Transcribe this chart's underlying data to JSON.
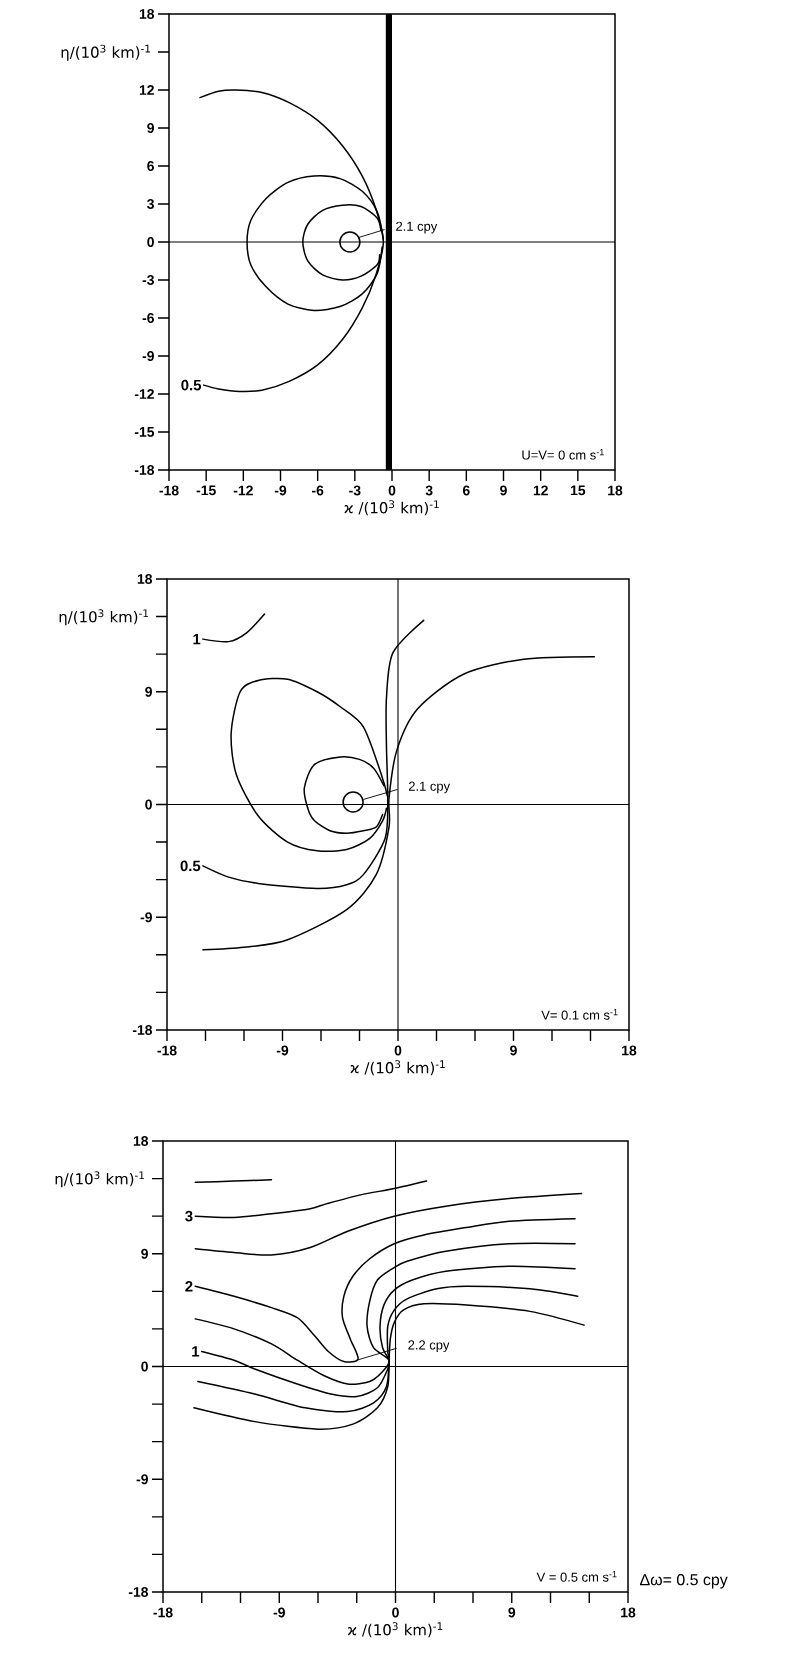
{
  "chart_data": [
    {
      "type": "line",
      "xlabel": "ϰ /(10$^{3}$ km)$^{-1}$",
      "ylabel": "η/(10$^{3}$ km)$^{-1}$",
      "xlim": [
        -18,
        18
      ],
      "ylim": [
        -18,
        18
      ],
      "xticks": [
        -18,
        -15,
        -12,
        -9,
        -6,
        -3,
        0,
        3,
        6,
        9,
        12,
        15,
        18
      ],
      "yticks": [
        -18,
        -15,
        -12,
        -9,
        -6,
        -3,
        0,
        3,
        6,
        9,
        12,
        {
          "value": 15,
          "label": null
        },
        18
      ],
      "series": [
        {
          "type": "scatter",
          "marker": "circle",
          "color": "#000000",
          "x": [
            -3.4
          ],
          "values": [
            0
          ]
        },
        {
          "color": "#000000",
          "x": [
            -0.9,
            -1.2,
            -2.5,
            -4.0,
            -5.6,
            -6.8,
            -7.2,
            -6.8,
            -5.6,
            -4.0,
            -2.5,
            -1.2,
            -1.0
          ],
          "values": [
            0.9,
            1.9,
            2.8,
            2.9,
            2.5,
            1.4,
            0,
            -1.5,
            -2.6,
            -3.0,
            -2.7,
            -1.8,
            -1.0
          ]
        },
        {
          "color": "#000000",
          "x": [
            -0.7,
            -1.2,
            -2.4,
            -4.2,
            -6.3,
            -8.4,
            -10.2,
            -11.4,
            -11.7,
            -11.4,
            -10.2,
            -8.4,
            -6.3,
            -4.2,
            -2.4,
            -1.2,
            -0.8
          ],
          "values": [
            0.2,
            2.4,
            4.0,
            5.0,
            5.2,
            4.7,
            3.4,
            1.7,
            0,
            -1.8,
            -3.5,
            -4.9,
            -5.4,
            -5.1,
            -4.1,
            -2.5,
            -0.4
          ]
        },
        {
          "color": "#000000",
          "x": [
            -15.2,
            -14.0,
            -12.3,
            -10.5,
            -8.3,
            -6.0,
            -4.0,
            -2.4,
            -1.3,
            -0.7,
            -1.3,
            -2.4,
            -4.0,
            -6.0,
            -8.3,
            -10.5,
            -12.6,
            -14.0,
            -15.5
          ],
          "values": [
            -11.3,
            -11.6,
            -11.8,
            -11.7,
            -11.0,
            -9.7,
            -7.7,
            -5.2,
            -2.6,
            0,
            2.6,
            5.2,
            7.6,
            9.6,
            11.0,
            11.8,
            12.0,
            11.9,
            11.4
          ]
        }
      ],
      "bands": [
        {
          "axis": "x",
          "from": -0.5,
          "to": 0,
          "color": "#000000"
        }
      ],
      "ref_lines": [
        {
          "axis": "y",
          "value": 0
        }
      ],
      "annotations": [
        {
          "text": "2.1 cpy",
          "x": -2.7,
          "y": 0.35
        },
        {
          "text": "0.5",
          "x": -15.2,
          "y": -11.3
        },
        "U=V= 0 cm s$^{-1}$"
      ]
    },
    {
      "type": "line",
      "xlabel": "ϰ /(10$^{3}$ km)$^{-1}$",
      "ylabel": "η/(10$^{3}$ km)$^{-1}$",
      "xlim": [
        -18,
        18
      ],
      "ylim": [
        -18,
        18
      ],
      "xticks": [
        -18,
        {
          "value": -15,
          "label": null
        },
        {
          "value": -12,
          "label": null
        },
        -9,
        {
          "value": -6,
          "label": null
        },
        {
          "value": -3,
          "label": null
        },
        0,
        {
          "value": 3,
          "label": null
        },
        {
          "value": 6,
          "label": null
        },
        9,
        {
          "value": 12,
          "label": null
        },
        {
          "value": 15,
          "label": null
        },
        18
      ],
      "yticks": [
        -18,
        {
          "value": -15,
          "label": null
        },
        {
          "value": -12,
          "label": null
        },
        -9,
        {
          "value": -6,
          "label": null
        },
        {
          "value": -3,
          "label": null
        },
        0,
        {
          "value": 3,
          "label": null
        },
        {
          "value": 6,
          "label": null
        },
        9,
        {
          "value": 12,
          "label": null
        },
        {
          "value": 15,
          "label": null
        },
        18
      ],
      "series": [
        {
          "type": "scatter",
          "marker": "circle",
          "color": "#000000",
          "x": [
            -3.5
          ],
          "values": [
            0.2
          ]
        },
        {
          "color": "#000000",
          "x": [
            -1.1,
            -1.9,
            -3.0,
            -4.5,
            -6.5,
            -7.3,
            -7.0,
            -6.5,
            -5.3,
            -4.0,
            -2.7,
            -1.7,
            -1.2
          ],
          "values": [
            1.5,
            2.9,
            3.6,
            3.8,
            3.2,
            1.3,
            -0.4,
            -1.3,
            -2.1,
            -2.3,
            -2.1,
            -1.8,
            -0.8
          ]
        },
        {
          "color": "#000000",
          "x": [
            -0.8,
            -1.3,
            -2.7,
            -4.5,
            -6.3,
            -8.6,
            -10.9,
            -12.3,
            -13.0,
            -12.6,
            -10.9,
            -8.6,
            -6.3,
            -4.0,
            -2.2,
            -1.2,
            -0.9
          ],
          "values": [
            0.6,
            2.4,
            6.2,
            7.8,
            9.0,
            10.0,
            9.9,
            9.0,
            5.7,
            2.4,
            -0.9,
            -3.0,
            -3.7,
            -3.6,
            -2.7,
            -1.3,
            -0.3
          ]
        },
        {
          "color": "#000000",
          "x": [
            -15.2,
            -13.2,
            -10.9,
            -6.3,
            -4.0,
            -2.7,
            -1.0,
            -0.8,
            -0.9,
            -0.9,
            -0.4,
            2.0
          ],
          "values": [
            -4.9,
            -5.8,
            -6.3,
            -6.7,
            -6.4,
            -5.6,
            -2.7,
            0.5,
            4.7,
            8.5,
            12.1,
            14.7
          ]
        },
        {
          "color": "#000000",
          "x": [
            -15.2,
            -12.0,
            -8.6,
            -4.0,
            -1.7,
            -0.7,
            -0.7,
            -0.1,
            1.5,
            5.1,
            9.8,
            15.3
          ],
          "values": [
            -11.6,
            -11.4,
            -10.8,
            -8.4,
            -5.6,
            -1.8,
            0.5,
            4.3,
            7.6,
            10.4,
            11.6,
            11.8
          ]
        },
        {
          "color": "#000000",
          "x": [
            -15.2,
            -13.2,
            -11.8,
            -10.4
          ],
          "values": [
            13.2,
            13.0,
            13.7,
            15.2
          ]
        }
      ],
      "ref_lines": [
        {
          "axis": "y",
          "value": 0
        },
        {
          "axis": "x",
          "value": 0
        }
      ],
      "annotations": [
        {
          "text": "2.1 cpy",
          "x": -2.7,
          "y": 0.4
        },
        {
          "text": "0.5",
          "x": -15.2,
          "y": -4.9
        },
        {
          "text": "1",
          "x": -15.2,
          "y": 13.2
        },
        "V= 0.1 cm s$^{-1}$"
      ]
    },
    {
      "type": "line",
      "xlabel": "ϰ /(10$^{3}$ km)$^{-1}$",
      "ylabel": "η/(10$^{3}$ km)$^{-1}$",
      "xlim": [
        -18,
        18
      ],
      "ylim": [
        -18,
        18
      ],
      "xticks": [
        -18,
        {
          "value": -15,
          "label": null
        },
        {
          "value": -12,
          "label": null
        },
        -9,
        {
          "value": -6,
          "label": null
        },
        {
          "value": -3,
          "label": null
        },
        0,
        {
          "value": 3,
          "label": null
        },
        {
          "value": 6,
          "label": null
        },
        9,
        {
          "value": 12,
          "label": null
        },
        {
          "value": 15,
          "label": null
        },
        18
      ],
      "yticks": [
        -18,
        {
          "value": -15,
          "label": null
        },
        {
          "value": -12,
          "label": null
        },
        -9,
        {
          "value": -6,
          "label": null
        },
        {
          "value": -3,
          "label": null
        },
        0,
        {
          "value": 3,
          "label": null
        },
        {
          "value": 6,
          "label": null
        },
        9,
        {
          "value": 12,
          "label": null
        },
        {
          "value": 15,
          "label": null
        },
        18
      ],
      "series": [
        {
          "color": "#000000",
          "x": [
            -15.5,
            -12.5,
            -9.6
          ],
          "values": [
            14.7,
            14.8,
            14.9
          ]
        },
        {
          "color": "#000000",
          "x": [
            -15.5,
            -12.5,
            -9.6,
            -6.6,
            -5.3,
            -2.7,
            -0.1,
            2.4
          ],
          "values": [
            12.0,
            11.9,
            12.2,
            12.6,
            13.0,
            13.7,
            14.2,
            14.8
          ]
        },
        {
          "color": "#000000",
          "x": [
            -15.5,
            -12.5,
            -9.6,
            -6.6,
            -3.7,
            -0.1,
            3.9,
            8.8,
            14.4
          ],
          "values": [
            9.4,
            9.1,
            8.9,
            9.5,
            10.8,
            12.0,
            12.8,
            13.4,
            13.8
          ]
        },
        {
          "color": "#000000",
          "x": [
            -15.5,
            -12.5,
            -9.6,
            -7.6,
            -6.3,
            -5.2,
            -4.0,
            -2.9,
            -3.5,
            -4.1,
            -4.0,
            -3.3,
            -2.0,
            -0.1,
            2.2,
            5.5,
            8.8,
            13.9
          ],
          "values": [
            6.4,
            5.6,
            4.7,
            3.9,
            2.5,
            1.2,
            0.4,
            0.6,
            2.2,
            3.9,
            5.6,
            7.2,
            8.6,
            9.8,
            10.5,
            11.1,
            11.6,
            11.8
          ]
        },
        {
          "color": "#000000",
          "x": [
            -15.5,
            -12.5,
            -9.6,
            -7.6,
            -5.6,
            -3.7,
            -2.0,
            -1.0,
            -0.5,
            -1.7,
            -2.2,
            -2.0,
            -1.4,
            -0.1,
            0.9,
            3.9,
            8.8,
            13.9
          ],
          "values": [
            3.8,
            3.0,
            1.8,
            0.5,
            -0.7,
            -1.4,
            -1.2,
            -0.4,
            0.5,
            1.5,
            3.2,
            5.2,
            6.9,
            7.9,
            8.4,
            9.2,
            9.8,
            9.8
          ]
        },
        {
          "color": "#000000",
          "x": [
            -15.0,
            -12.5,
            -10.9,
            -7.6,
            -5.0,
            -3.0,
            -1.4,
            -0.6,
            -0.5,
            -1.0,
            -1.2,
            -0.9,
            -0.1,
            1.3,
            3.9,
            8.8,
            13.9
          ],
          "values": [
            1.2,
            0.5,
            -0.2,
            -1.4,
            -2.2,
            -2.4,
            -1.7,
            -0.2,
            0.5,
            1.5,
            3.2,
            4.9,
            6.1,
            6.9,
            7.6,
            8.0,
            7.8
          ]
        },
        {
          "color": "#000000",
          "x": [
            -15.3,
            -10.9,
            -7.0,
            -3.7,
            -1.7,
            -0.7,
            -0.5,
            -0.6,
            -0.6,
            -0.1,
            0.9,
            3.2,
            5.5,
            10.4,
            14.1
          ],
          "values": [
            -1.2,
            -2.2,
            -3.3,
            -3.6,
            -2.9,
            -1.6,
            0.5,
            1.2,
            3.2,
            4.5,
            5.4,
            6.2,
            6.4,
            6.2,
            5.6
          ]
        },
        {
          "color": "#000000",
          "x": [
            -15.6,
            -10.9,
            -6.0,
            -3.3,
            -1.4,
            -0.6,
            -0.5,
            -0.4,
            -0.1,
            0.6,
            2.2,
            5.5,
            10.4,
            14.6
          ],
          "values": [
            -3.3,
            -4.4,
            -5.0,
            -4.6,
            -3.3,
            -1.6,
            0.5,
            2.2,
            3.5,
            4.5,
            5.0,
            4.9,
            4.4,
            3.3
          ]
        }
      ],
      "ref_lines": [
        {
          "axis": "y",
          "value": 0
        },
        {
          "axis": "x",
          "value": 0
        }
      ],
      "annotations": [
        {
          "text": "2.2 cpy",
          "x": -3.0,
          "y": 0.5
        },
        {
          "text": "3",
          "x": -15.5,
          "y": 12.0
        },
        {
          "text": "2",
          "x": -15.5,
          "y": 6.4
        },
        {
          "text": "1",
          "x": -15.0,
          "y": 1.2
        },
        "V = 0.5 cm s$^{-1}$",
        "Δω= 0.5 cpy"
      ]
    }
  ]
}
